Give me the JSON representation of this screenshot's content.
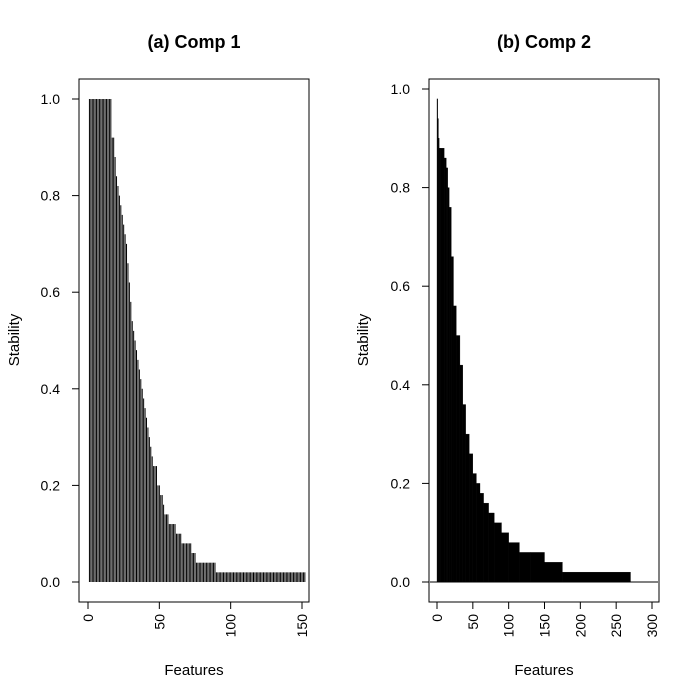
{
  "chart_data": [
    {
      "type": "bar",
      "title": "(a) Comp 1",
      "xlabel": "Features",
      "ylabel": "Stability",
      "xlim": [
        0,
        150
      ],
      "ylim": [
        0,
        1
      ],
      "x_ticks": [
        "0",
        "50",
        "100",
        "150"
      ],
      "y_ticks": [
        "0.0",
        "0.2",
        "0.4",
        "0.6",
        "0.8",
        "1.0"
      ],
      "grid": false,
      "values": [
        1.0,
        1.0,
        1.0,
        1.0,
        1.0,
        1.0,
        1.0,
        1.0,
        1.0,
        1.0,
        1.0,
        1.0,
        1.0,
        1.0,
        1.0,
        1.0,
        0.92,
        0.92,
        0.88,
        0.84,
        0.82,
        0.8,
        0.78,
        0.76,
        0.74,
        0.72,
        0.7,
        0.66,
        0.62,
        0.58,
        0.54,
        0.52,
        0.5,
        0.48,
        0.46,
        0.44,
        0.42,
        0.4,
        0.38,
        0.36,
        0.34,
        0.32,
        0.3,
        0.28,
        0.26,
        0.24,
        0.24,
        0.24,
        0.2,
        0.2,
        0.18,
        0.18,
        0.16,
        0.14,
        0.14,
        0.14,
        0.12,
        0.12,
        0.12,
        0.12,
        0.12,
        0.1,
        0.1,
        0.1,
        0.1,
        0.08,
        0.08,
        0.08,
        0.08,
        0.08,
        0.08,
        0.08,
        0.06,
        0.06,
        0.06,
        0.04,
        0.04,
        0.04,
        0.04,
        0.04,
        0.04,
        0.04,
        0.04,
        0.04,
        0.04,
        0.04,
        0.04,
        0.04,
        0.04,
        0.02,
        0.02,
        0.02,
        0.02,
        0.02,
        0.02,
        0.02,
        0.02,
        0.02,
        0.02,
        0.02,
        0.02,
        0.02,
        0.02,
        0.02,
        0.02,
        0.02,
        0.02,
        0.02,
        0.02,
        0.02,
        0.02,
        0.02,
        0.02,
        0.02,
        0.02,
        0.02,
        0.02,
        0.02,
        0.02,
        0.02,
        0.02,
        0.02,
        0.02,
        0.02,
        0.02,
        0.02,
        0.02,
        0.02,
        0.02,
        0.02,
        0.02,
        0.02,
        0.02,
        0.02,
        0.02,
        0.02,
        0.02,
        0.02,
        0.02,
        0.02,
        0.02,
        0.02,
        0.02,
        0.02,
        0.02,
        0.02,
        0.02,
        0.02,
        0.02,
        0.02,
        0.02,
        0.02
      ]
    },
    {
      "type": "bar",
      "title": "(b) Comp 2",
      "xlabel": "Features",
      "ylabel": "Stability",
      "xlim": [
        0,
        300
      ],
      "ylim": [
        0,
        1
      ],
      "x_ticks": [
        "0",
        "50",
        "100",
        "150",
        "200",
        "250",
        "300"
      ],
      "y_ticks": [
        "0.0",
        "0.2",
        "0.4",
        "0.6",
        "0.8",
        "1.0"
      ],
      "grid": false,
      "steps": [
        {
          "from": 0,
          "to": 1,
          "value": 0.98
        },
        {
          "from": 1,
          "to": 2,
          "value": 0.94
        },
        {
          "from": 2,
          "to": 3,
          "value": 0.9
        },
        {
          "from": 3,
          "to": 5,
          "value": 0.88
        },
        {
          "from": 5,
          "to": 10,
          "value": 0.88
        },
        {
          "from": 10,
          "to": 13,
          "value": 0.86
        },
        {
          "from": 13,
          "to": 15,
          "value": 0.84
        },
        {
          "from": 15,
          "to": 17,
          "value": 0.8
        },
        {
          "from": 17,
          "to": 20,
          "value": 0.76
        },
        {
          "from": 20,
          "to": 23,
          "value": 0.66
        },
        {
          "from": 23,
          "to": 27,
          "value": 0.56
        },
        {
          "from": 27,
          "to": 32,
          "value": 0.5
        },
        {
          "from": 32,
          "to": 36,
          "value": 0.44
        },
        {
          "from": 36,
          "to": 40,
          "value": 0.36
        },
        {
          "from": 40,
          "to": 45,
          "value": 0.3
        },
        {
          "from": 45,
          "to": 50,
          "value": 0.26
        },
        {
          "from": 50,
          "to": 55,
          "value": 0.22
        },
        {
          "from": 55,
          "to": 60,
          "value": 0.2
        },
        {
          "from": 60,
          "to": 65,
          "value": 0.18
        },
        {
          "from": 65,
          "to": 72,
          "value": 0.16
        },
        {
          "from": 72,
          "to": 80,
          "value": 0.14
        },
        {
          "from": 80,
          "to": 90,
          "value": 0.12
        },
        {
          "from": 90,
          "to": 100,
          "value": 0.1
        },
        {
          "from": 100,
          "to": 115,
          "value": 0.08
        },
        {
          "from": 115,
          "to": 130,
          "value": 0.06
        },
        {
          "from": 130,
          "to": 150,
          "value": 0.06
        },
        {
          "from": 150,
          "to": 175,
          "value": 0.04
        },
        {
          "from": 175,
          "to": 270,
          "value": 0.02
        }
      ]
    }
  ]
}
